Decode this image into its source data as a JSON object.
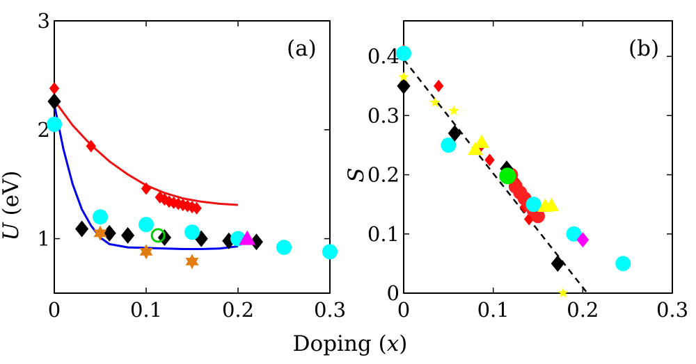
{
  "chart_data": [
    {
      "type": "scatter",
      "panel_label": "(a)",
      "ylabel_var": "U",
      "ylabel_unit": " (eV)",
      "xlim": [
        0,
        0.3
      ],
      "ylim": [
        0.5,
        3
      ],
      "xticks": [
        0,
        0.1,
        0.2,
        0.3
      ],
      "xtick_labels": [
        "0",
        "0.1",
        "0.2",
        "0.3"
      ],
      "yticks": [
        1,
        2,
        3
      ],
      "ytick_labels": [
        "1",
        "2",
        "3"
      ],
      "series": [
        {
          "name": "red-diamond",
          "marker": "diamond",
          "color": "#ff0000",
          "size": 9,
          "x": [
            0.0,
            0.04,
            0.1,
            0.115,
            0.12,
            0.125,
            0.13,
            0.135,
            0.14,
            0.145,
            0.15,
            0.155
          ],
          "y": [
            2.38,
            1.85,
            1.46,
            1.38,
            1.36,
            1.34,
            1.33,
            1.32,
            1.31,
            1.3,
            1.29,
            1.28
          ]
        },
        {
          "name": "black-diamond",
          "marker": "diamond",
          "color": "#000000",
          "size": 12,
          "x": [
            0.0,
            0.03,
            0.06,
            0.08,
            0.12,
            0.16,
            0.19,
            0.22
          ],
          "y": [
            2.26,
            1.09,
            1.05,
            1.03,
            1.01,
            1.0,
            0.98,
            0.97
          ]
        },
        {
          "name": "cyan-circle",
          "marker": "circle",
          "color": "#00ffff",
          "size": 11,
          "x": [
            0.0,
            0.05,
            0.1,
            0.15,
            0.2,
            0.25,
            0.3
          ],
          "y": [
            2.05,
            1.2,
            1.13,
            1.06,
            1.0,
            0.92,
            0.88
          ]
        },
        {
          "name": "orange-star",
          "marker": "star6",
          "color": "#e07c10",
          "size": 11,
          "x": [
            0.05,
            0.1,
            0.15
          ],
          "y": [
            1.05,
            0.88,
            0.79
          ]
        },
        {
          "name": "green-open-circle",
          "marker": "ocircle",
          "color": "#00cc00",
          "size": 9,
          "x": [
            0.113
          ],
          "y": [
            1.03
          ]
        },
        {
          "name": "magenta-triangle",
          "marker": "triangle",
          "color": "#ff00ff",
          "size": 12,
          "x": [
            0.21
          ],
          "y": [
            1.0
          ]
        }
      ],
      "fit_lines": [
        {
          "name": "red-fit",
          "color": "#ee1111",
          "x": [
            0.0,
            0.02,
            0.04,
            0.06,
            0.08,
            0.1,
            0.12,
            0.14,
            0.16,
            0.18,
            0.2
          ],
          "y": [
            2.27,
            2.04,
            1.86,
            1.71,
            1.59,
            1.49,
            1.42,
            1.37,
            1.34,
            1.32,
            1.31
          ]
        },
        {
          "name": "blue-fit",
          "color": "#0000ee",
          "x": [
            0.0,
            0.01,
            0.02,
            0.03,
            0.04,
            0.05,
            0.06,
            0.08,
            0.1,
            0.12,
            0.14,
            0.16,
            0.18,
            0.2
          ],
          "y": [
            2.23,
            1.82,
            1.5,
            1.27,
            1.12,
            1.01,
            0.95,
            0.92,
            0.915,
            0.91,
            0.905,
            0.905,
            0.91,
            0.93
          ]
        }
      ]
    },
    {
      "type": "scatter",
      "panel_label": "(b)",
      "ylabel_var": "S",
      "xlim": [
        0,
        0.3
      ],
      "ylim": [
        0,
        0.46
      ],
      "xticks": [
        0,
        0.1,
        0.2,
        0.3
      ],
      "xtick_labels": [
        "0",
        "0.1",
        "0.2",
        "0.3"
      ],
      "yticks": [
        0,
        0.1,
        0.2,
        0.3,
        0.4
      ],
      "ytick_labels": [
        "0",
        "0.1",
        "0.2",
        "0.3",
        "0.4"
      ],
      "series": [
        {
          "name": "red-diamond",
          "marker": "diamond",
          "color": "#ff0000",
          "size": 9,
          "x": [
            0.0,
            0.039,
            0.084,
            0.096,
            0.122,
            0.127,
            0.13,
            0.132,
            0.135,
            0.14
          ],
          "y": [
            0.41,
            0.35,
            0.245,
            0.225,
            0.2,
            0.185,
            0.175,
            0.16,
            0.145,
            0.125
          ]
        },
        {
          "name": "red-circle",
          "marker": "circle",
          "color": "#ff2222",
          "size": 10,
          "x": [
            0.12,
            0.125,
            0.13,
            0.135,
            0.14,
            0.145,
            0.15
          ],
          "y": [
            0.2,
            0.18,
            0.17,
            0.16,
            0.15,
            0.14,
            0.13
          ]
        },
        {
          "name": "cyan-circle",
          "marker": "circle",
          "color": "#00ffff",
          "size": 11,
          "x": [
            0.0,
            0.05,
            0.145,
            0.19,
            0.245
          ],
          "y": [
            0.405,
            0.25,
            0.15,
            0.1,
            0.05
          ]
        },
        {
          "name": "black-diamond",
          "marker": "diamond",
          "color": "#000000",
          "size": 12,
          "x": [
            0.0,
            0.057,
            0.115,
            0.172
          ],
          "y": [
            0.35,
            0.27,
            0.21,
            0.05
          ]
        },
        {
          "name": "yellow-star",
          "marker": "star5",
          "color": "#ffff00",
          "size": 8,
          "x": [
            0.0,
            0.035,
            0.056,
            0.178
          ],
          "y": [
            0.365,
            0.322,
            0.308,
            0.0
          ]
        },
        {
          "name": "yellow-triangle",
          "marker": "triangle",
          "color": "#ffff00",
          "size": 11,
          "x": [
            0.08,
            0.087,
            0.158,
            0.165
          ],
          "y": [
            0.243,
            0.255,
            0.147,
            0.148
          ]
        },
        {
          "name": "green-circle",
          "marker": "circle",
          "color": "#00ee00",
          "size": 12,
          "x": [
            0.116
          ],
          "y": [
            0.198
          ]
        },
        {
          "name": "magenta-diamond",
          "marker": "diamond",
          "color": "#ff00ff",
          "size": 11,
          "x": [
            0.2
          ],
          "y": [
            0.09
          ]
        }
      ],
      "fit_lines": [
        {
          "name": "dashed-fit",
          "color": "#000000",
          "dashed": true,
          "x": [
            0.0,
            0.205
          ],
          "y": [
            0.395,
            0.0
          ]
        }
      ]
    }
  ],
  "shared_xlabel_text": "Doping (",
  "shared_xlabel_var": "x",
  "shared_xlabel_close": ")"
}
